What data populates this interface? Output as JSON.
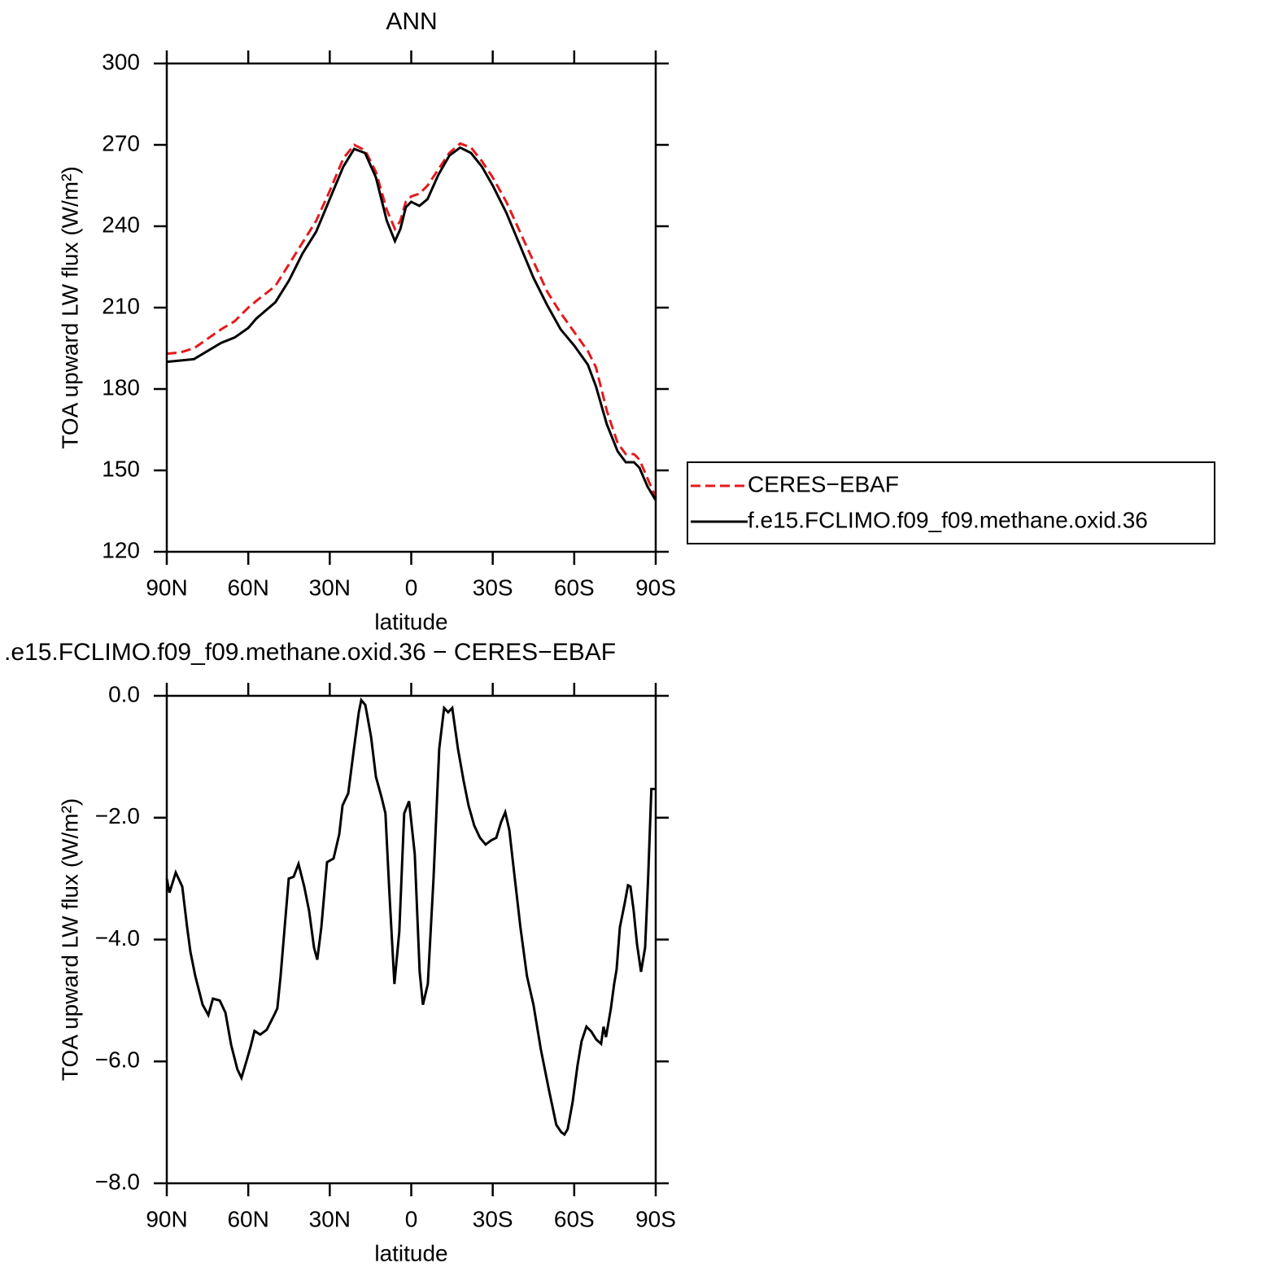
{
  "chart_data": [
    {
      "type": "line",
      "title": "ANN",
      "xlabel": "latitude",
      "ylabel": "TOA upward LW flux (W/m²)",
      "xlim": [
        90,
        -90
      ],
      "xticks": [
        {
          "value": 90,
          "label": "90N"
        },
        {
          "value": 60,
          "label": "60N"
        },
        {
          "value": 30,
          "label": "30N"
        },
        0,
        {
          "value": -30,
          "label": "30S"
        },
        {
          "value": -60,
          "label": "60S"
        },
        {
          "value": -90,
          "label": "90S"
        }
      ],
      "ylim": [
        120,
        300
      ],
      "yticks": [
        120,
        150,
        180,
        210,
        240,
        270,
        300
      ],
      "legend": "right",
      "x": [
        90,
        85,
        80,
        75,
        70,
        65,
        60,
        57,
        50,
        45,
        40,
        35,
        30,
        25,
        21,
        17,
        13,
        9,
        6,
        4,
        2,
        0,
        -3,
        -6,
        -10,
        -14,
        -18,
        -22,
        -26,
        -30,
        -35,
        -40,
        -45,
        -50,
        -55,
        -60,
        -65,
        -68,
        -72,
        -76,
        -79,
        -82,
        -84,
        -87,
        -90
      ],
      "series": [
        {
          "name": "CERES−EBAF",
          "color": "#e41a1c",
          "linestyle": "dashed",
          "values": [
            193,
            193.5,
            195,
            198.5,
            202,
            205,
            210,
            212.5,
            218,
            226,
            234,
            242,
            253,
            265,
            270,
            268,
            260,
            246,
            239,
            242,
            249,
            251,
            252,
            255,
            261,
            267,
            270.5,
            269,
            264,
            258,
            249,
            238,
            227,
            216,
            208,
            201,
            194,
            188,
            172,
            160,
            156,
            156,
            154,
            147,
            140
          ]
        },
        {
          "name": "f.e15.FCLIMO.f09_f09.methane.oxid.36",
          "color": "#000000",
          "linestyle": "solid",
          "values": [
            190,
            190.5,
            191,
            194,
            197,
            199,
            202.5,
            206,
            212,
            220,
            230,
            238,
            250,
            262,
            268.5,
            267,
            258,
            242,
            234.5,
            239,
            247,
            249,
            247.5,
            250,
            259,
            266,
            269,
            267,
            262,
            255,
            245,
            233,
            221,
            211,
            202,
            196,
            189,
            181,
            167,
            157,
            153,
            153,
            151,
            144,
            139
          ]
        }
      ]
    },
    {
      "type": "line",
      "title": ".e15.FCLIMO.f09_f09.methane.oxid.36 − CERES−EBAF",
      "xlabel": "latitude",
      "ylabel": "TOA upward LW flux (W/m²)",
      "xlim": [
        90,
        -90
      ],
      "xticks": [
        {
          "value": 90,
          "label": "90N"
        },
        {
          "value": 60,
          "label": "60N"
        },
        {
          "value": 30,
          "label": "30N"
        },
        0,
        {
          "value": -30,
          "label": "30S"
        },
        {
          "value": -60,
          "label": "60S"
        },
        {
          "value": -90,
          "label": "90S"
        }
      ],
      "ylim": [
        -8,
        0
      ],
      "yticks": [
        {
          "value": -8,
          "label": "−8.0"
        },
        {
          "value": -6,
          "label": "−6.0"
        },
        {
          "value": -4,
          "label": "−4.0"
        },
        {
          "value": -2,
          "label": "−2.0"
        },
        {
          "value": 0,
          "label": "0.0"
        }
      ],
      "x": [
        90,
        89,
        86.7,
        84.3,
        82.5,
        81.3,
        79.5,
        76.8,
        74.7,
        73,
        70.5,
        68.4,
        66.3,
        64,
        62.5,
        60.7,
        59.2,
        57.7,
        55.6,
        53.2,
        50.8,
        49.3,
        48.1,
        46.6,
        45.1,
        43.3,
        41.5,
        39.4,
        37.6,
        35.8,
        34.6,
        33.1,
        31,
        28.6,
        26.5,
        25.3,
        23.2,
        21.1,
        19.3,
        18.4,
        16.9,
        14.8,
        13,
        10.9,
        9.5,
        8,
        6.2,
        4.4,
        2.6,
        0.8,
        -1.3,
        -3.1,
        -4.3,
        -6.1,
        -8.2,
        -10.3,
        -12.1,
        -13.6,
        -15.1,
        -17.2,
        -19.3,
        -21.1,
        -23.2,
        -25.3,
        -27.4,
        -29.5,
        -31.3,
        -33.1,
        -34.6,
        -36.1,
        -37.8,
        -40.2,
        -42.6,
        -45,
        -47.7,
        -50.7,
        -53.4,
        -55.2,
        -56.4,
        -57.6,
        -59.4,
        -61.2,
        -62.7,
        -64.5,
        -66.3,
        -68.1,
        -69.9,
        -70.8,
        -71.7,
        -73.5,
        -74.7,
        -75.6,
        -76.8,
        -78.6,
        -79.8,
        -80.7,
        -81.9,
        -83.1,
        -84.6,
        -86.1,
        -87.2,
        -88.4,
        -90
      ],
      "series": [
        {
          "color": "#000000",
          "linestyle": "solid",
          "values": [
            -3.0,
            -3.23,
            -2.9,
            -3.13,
            -3.8,
            -4.2,
            -4.6,
            -5.07,
            -5.24,
            -4.97,
            -5.0,
            -5.2,
            -5.73,
            -6.13,
            -6.27,
            -6.0,
            -5.77,
            -5.5,
            -5.56,
            -5.48,
            -5.27,
            -5.13,
            -4.6,
            -3.8,
            -3.0,
            -2.97,
            -2.76,
            -3.13,
            -3.53,
            -4.13,
            -4.33,
            -3.8,
            -2.73,
            -2.67,
            -2.27,
            -1.8,
            -1.6,
            -0.87,
            -0.27,
            -0.07,
            -0.15,
            -0.67,
            -1.33,
            -1.67,
            -1.93,
            -3.27,
            -4.73,
            -3.87,
            -1.93,
            -1.73,
            -2.6,
            -4.53,
            -5.07,
            -4.73,
            -3.0,
            -0.87,
            -0.2,
            -0.27,
            -0.2,
            -0.87,
            -1.4,
            -1.8,
            -2.13,
            -2.33,
            -2.44,
            -2.37,
            -2.33,
            -2.07,
            -1.91,
            -2.2,
            -2.87,
            -3.8,
            -4.6,
            -5.07,
            -5.8,
            -6.47,
            -7.04,
            -7.16,
            -7.2,
            -7.11,
            -6.67,
            -6.07,
            -5.67,
            -5.43,
            -5.51,
            -5.64,
            -5.71,
            -5.43,
            -5.6,
            -5.13,
            -4.73,
            -4.49,
            -3.8,
            -3.4,
            -3.11,
            -3.13,
            -3.53,
            -4.07,
            -4.53,
            -4.13,
            -3.0,
            -1.53,
            -1.53
          ]
        }
      ]
    }
  ]
}
